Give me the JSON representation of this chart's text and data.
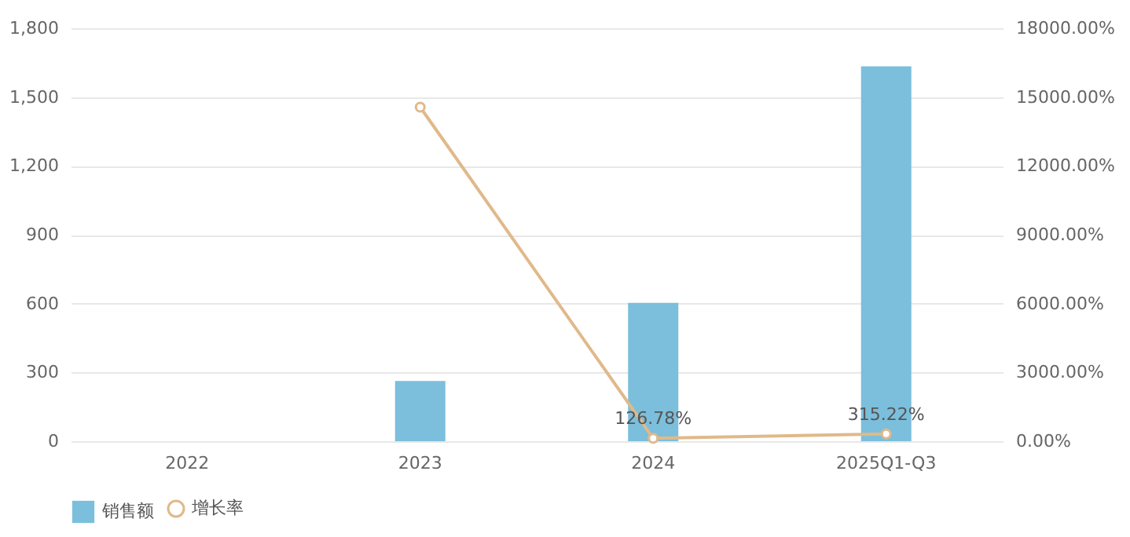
{
  "chart_data": {
    "type": "bar",
    "categories": [
      "2022",
      "2023",
      "2024",
      "2025Q1-Q3"
    ],
    "series": [
      {
        "name": "销售额",
        "color": "#7bbfdc",
        "values": [
          null,
          263,
          603,
          1634
        ]
      },
      {
        "name": "增长率",
        "type": "line",
        "axis": "y2",
        "color": "#e0b98a",
        "values": [
          null,
          14560,
          126.78,
          315.22
        ],
        "value_labels": [
          null,
          null,
          "126.78%",
          "315.22%"
        ]
      }
    ],
    "ylim": [
      0,
      1800
    ],
    "yticks": [
      0,
      300,
      600,
      900,
      {
        "value": 1200,
        "label": "1,200"
      },
      {
        "value": 1500,
        "label": "1,500"
      },
      {
        "value": 1800,
        "label": "1,800"
      }
    ],
    "y2lim": [
      0,
      18000
    ],
    "y2ticks": [
      {
        "value": 0,
        "label": "0.00%"
      },
      {
        "value": 3000,
        "label": "3000.00%"
      },
      {
        "value": 6000,
        "label": "6000.00%"
      },
      {
        "value": 9000,
        "label": "9000.00%"
      },
      {
        "value": 12000,
        "label": "12000.00%"
      },
      {
        "value": 15000,
        "label": "15000.00%"
      },
      {
        "value": 18000,
        "label": "18000.00%"
      }
    ],
    "grid": "y",
    "legend": "bottom",
    "marker": "circle"
  }
}
